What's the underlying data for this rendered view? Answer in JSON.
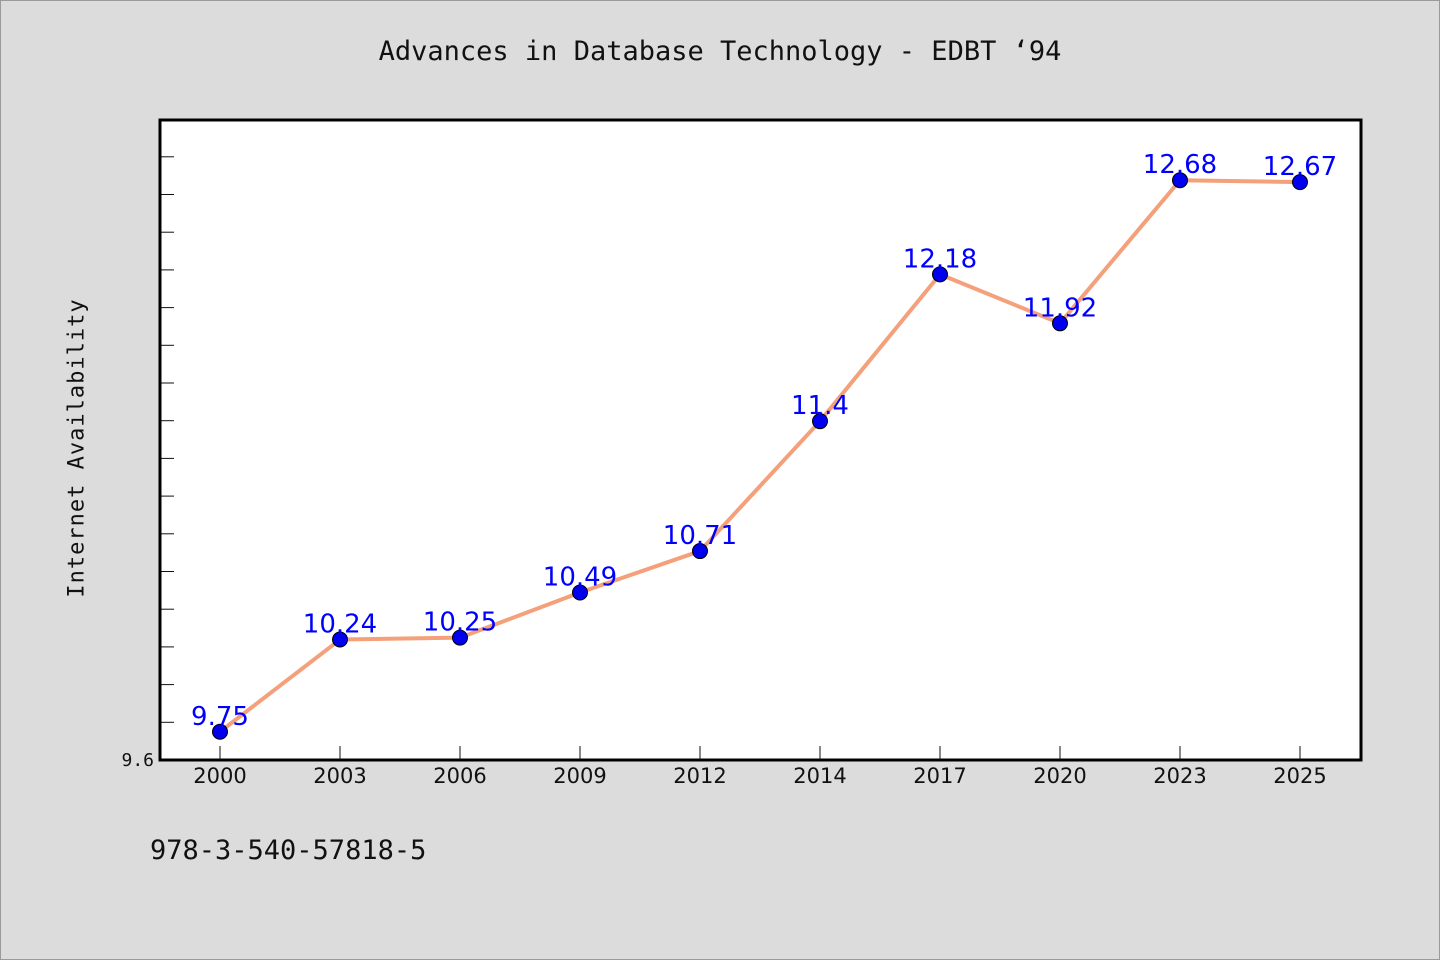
{
  "title": "Advances in Database Technology - EDBT  ‘94",
  "footer_text": "978-3-540-57818-5",
  "chart_data": {
    "type": "line",
    "title": "Advances in Database Technology - EDBT  ‘94",
    "xlabel": "",
    "ylabel": "Internet Availability",
    "categories": [
      "2000",
      "2003",
      "2006",
      "2009",
      "2012",
      "2014",
      "2017",
      "2020",
      "2023",
      "2025"
    ],
    "series": [
      {
        "values": [
          9.75,
          10.24,
          10.25,
          10.49,
          10.71,
          11.4,
          12.18,
          11.92,
          12.68,
          12.67
        ],
        "labels": [
          "9.75",
          "10.24",
          "10.25",
          "10.49",
          "10.71",
          "11.4",
          "12.18",
          "11.92",
          "12.68",
          "12.67"
        ],
        "line_color": "#f4a07a",
        "marker_color": "#0000ee",
        "label_color": "#0000ff"
      }
    ],
    "ylim": [
      9.6,
      13.0
    ],
    "ytick_labels": [
      "9.6"
    ],
    "grid": false,
    "legend": "none",
    "background": "#ffffff",
    "page_background": "#dcdcdc"
  }
}
